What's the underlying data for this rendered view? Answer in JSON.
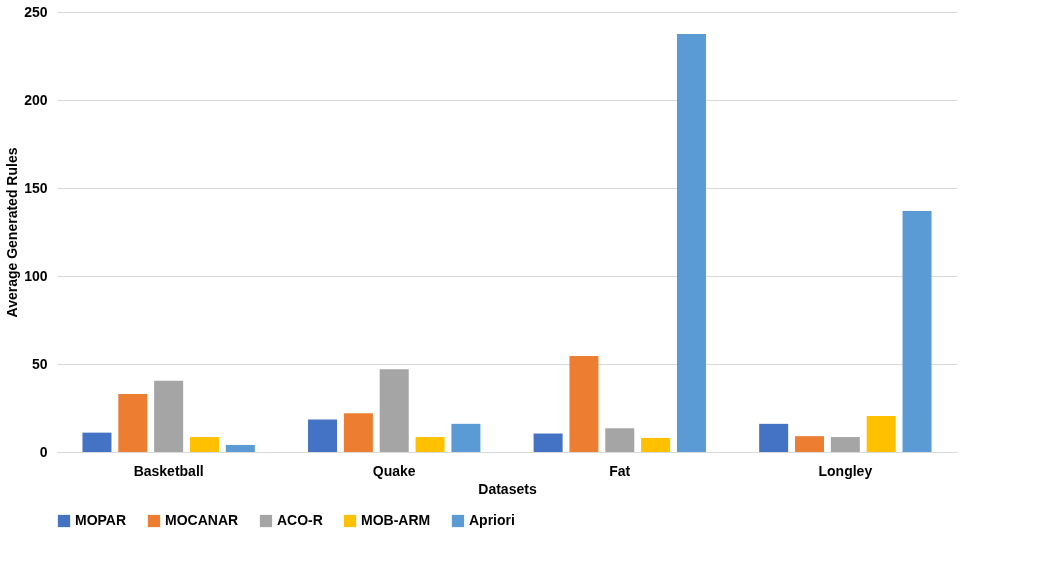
{
  "chart_data": {
    "type": "bar",
    "xlabel": "Datasets",
    "ylabel": "Average Generated Rules",
    "categories": [
      "Basketball",
      "Quake",
      "Fat",
      "Longley"
    ],
    "series": [
      {
        "name": "MOPAR",
        "color": "#4472c4",
        "values": [
          11,
          18.5,
          10.5,
          16
        ]
      },
      {
        "name": "MOCANAR",
        "color": "#ed7d31",
        "values": [
          33,
          22,
          54.5,
          9
        ]
      },
      {
        "name": "ACO-R",
        "color": "#a5a5a5",
        "values": [
          40.5,
          47,
          13.5,
          8.5
        ]
      },
      {
        "name": "MOB-ARM",
        "color": "#ffc000",
        "values": [
          8.5,
          8.5,
          8,
          20.5
        ]
      },
      {
        "name": "Apriori",
        "color": "#5b9bd5",
        "values": [
          4,
          16,
          237.5,
          137
        ]
      }
    ],
    "ylim": [
      0,
      250
    ],
    "yticks": [
      0,
      50,
      100,
      150,
      200,
      250
    ],
    "grid": "y",
    "legend": "bottom"
  }
}
